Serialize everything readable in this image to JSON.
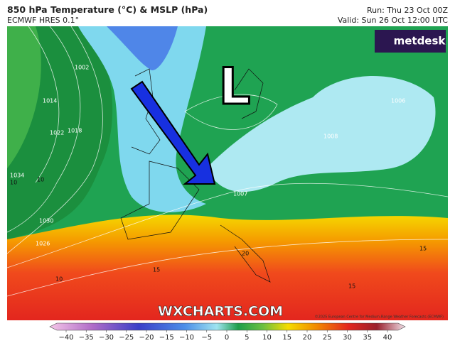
{
  "header": {
    "title": "850 hPa Temperature (°C) & MSLP (hPa)",
    "model": "ECMWF HRES 0.1°",
    "run": "Run: Thu 23 Oct 00Z",
    "valid": "Valid: Sun 26 Oct 12:00 UTC"
  },
  "map": {
    "logo": "metdesk",
    "low_marker": "L",
    "watermark": "WXCHARTS.COM",
    "copyright": "©2025 European Centre for Medium-Range Weather Forecasts (ECMWF)",
    "isobar_labels": [
      "1002",
      "1014",
      "1022",
      "1018",
      "1034",
      "1030",
      "1026",
      "1007",
      "1006",
      "1008"
    ],
    "temperature_labels": [
      "10",
      "10",
      "10",
      "15",
      "20",
      "15",
      "15"
    ]
  },
  "colorbar": {
    "ticks": [
      {
        "value": -40,
        "label": "−40"
      },
      {
        "value": -35,
        "label": "−35"
      },
      {
        "value": -30,
        "label": "−30"
      },
      {
        "value": -25,
        "label": "−25"
      },
      {
        "value": -20,
        "label": "−20"
      },
      {
        "value": -15,
        "label": "−15"
      },
      {
        "value": -10,
        "label": "−10"
      },
      {
        "value": -5,
        "label": "−5"
      },
      0,
      5,
      10,
      15,
      20,
      25,
      30,
      35,
      40
    ]
  }
}
